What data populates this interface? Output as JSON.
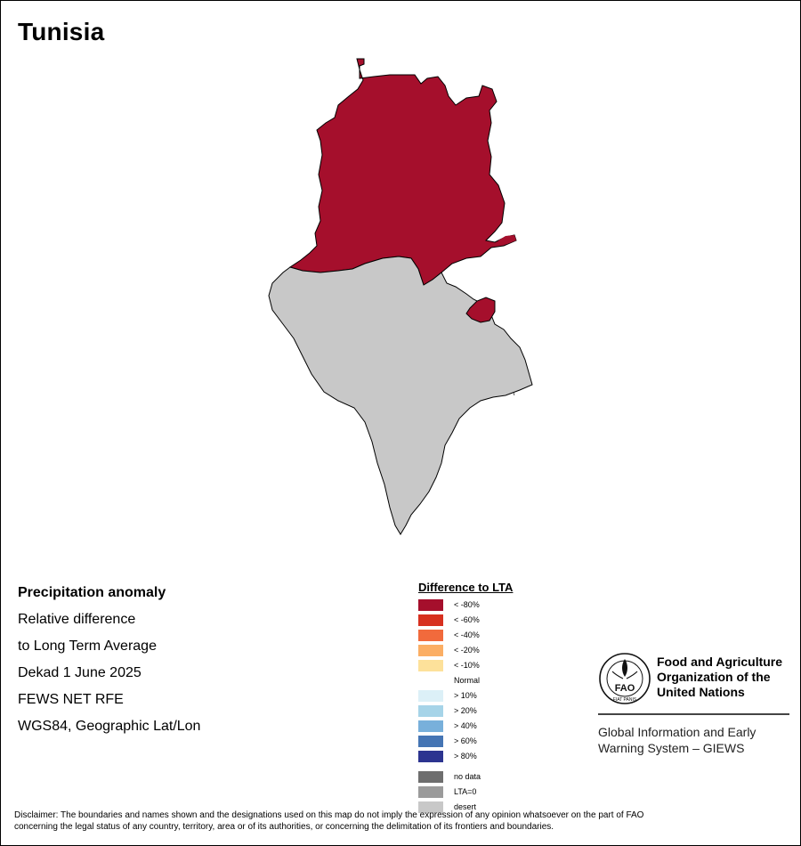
{
  "map": {
    "country": "Tunisia",
    "colors": {
      "lt_80": "#a50f2c",
      "lt_60": "#d7301f",
      "lt_40": "#f16a3c",
      "lt_20": "#fbae64",
      "lt_10": "#fde19a",
      "normal": "#ffffff",
      "gt_10": "#dcf0f7",
      "gt_20": "#a6d4e8",
      "gt_40": "#78b0db",
      "gt_60": "#4575b4",
      "gt_80": "#2c3490",
      "no_data": "#6e6e6e",
      "lta0": "#9b9b9b",
      "desert": "#c8c8c8",
      "border": "#000000"
    }
  },
  "info": {
    "lines": [
      "Precipitation anomaly",
      "Relative difference",
      "to Long Term Average",
      "Dekad 1 June 2025",
      "FEWS NET RFE",
      "WGS84, Geographic Lat/Lon"
    ]
  },
  "legend": {
    "title": "Difference to LTA",
    "items": [
      {
        "label": "< -80%",
        "color": "#a50f2c"
      },
      {
        "label": "< -60%",
        "color": "#d7301f"
      },
      {
        "label": "< -40%",
        "color": "#f16a3c"
      },
      {
        "label": "< -20%",
        "color": "#fbae64"
      },
      {
        "label": "< -10%",
        "color": "#fde19a"
      },
      {
        "label": "Normal",
        "color": "#ffffff"
      },
      {
        "label": "> 10%",
        "color": "#dcf0f7"
      },
      {
        "label": "> 20%",
        "color": "#a6d4e8"
      },
      {
        "label": "> 40%",
        "color": "#78b0db"
      },
      {
        "label": "> 60%",
        "color": "#4575b4"
      },
      {
        "label": "> 80%",
        "color": "#2c3490"
      }
    ],
    "extra_items": [
      {
        "label": "no data",
        "color": "#6e6e6e"
      },
      {
        "label": "LTA=0",
        "color": "#9b9b9b"
      },
      {
        "label": "desert",
        "color": "#c8c8c8"
      }
    ]
  },
  "org": {
    "logo_text": "FAO",
    "logo_motto": "FIAT PANIS",
    "name_lines": [
      "Food and Agriculture",
      "Organization of the",
      "United Nations"
    ],
    "system_lines": [
      "Global Information and Early",
      "Warning System – GIEWS"
    ]
  },
  "disclaimer": {
    "line1": "Disclaimer: The boundaries and names shown and the designations used on this map do not imply the expression of any opinion whatsoever on the part of FAO",
    "line2": "concerning the legal status of any country, territory, area or of its authorities, or concerning the delimitation of its frontiers and boundaries."
  }
}
